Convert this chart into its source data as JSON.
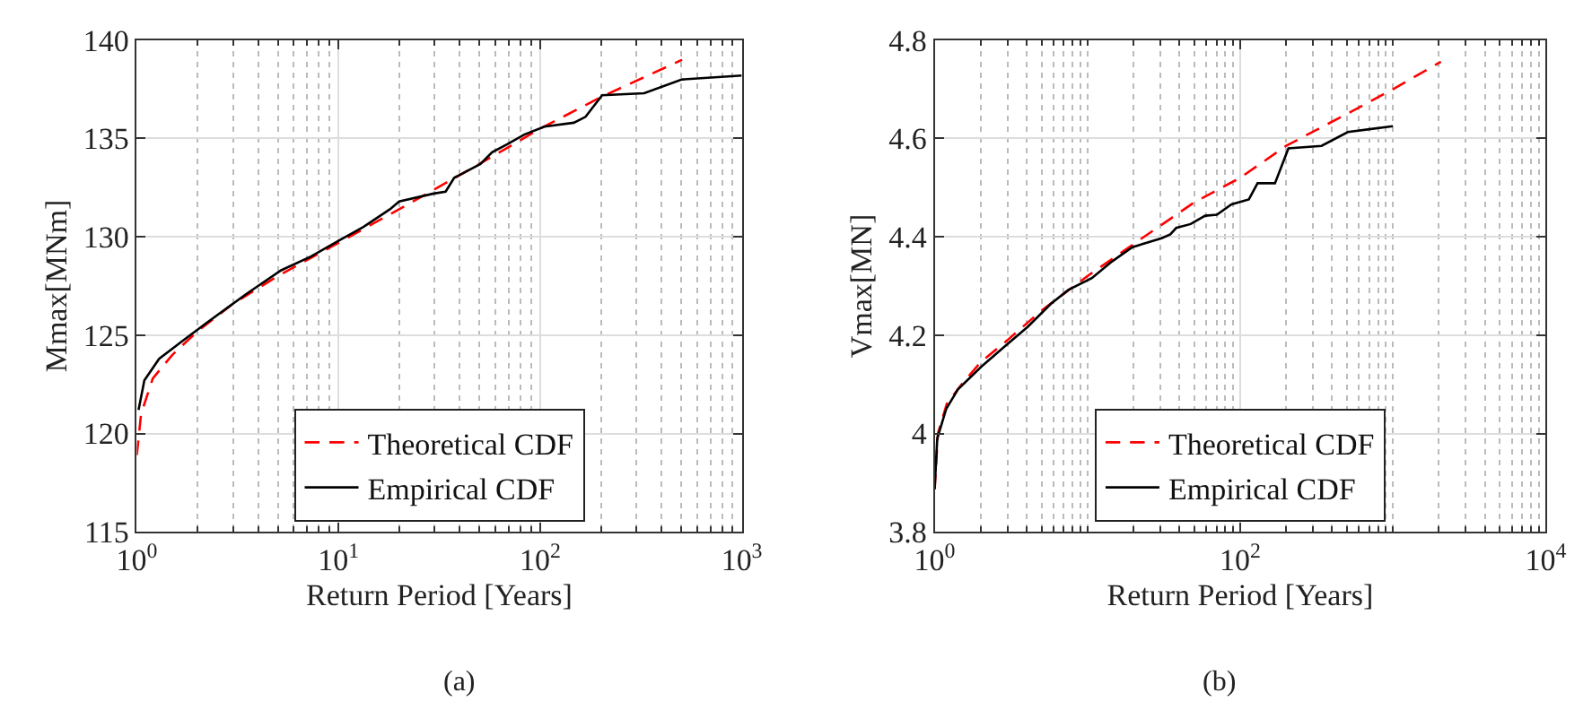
{
  "chart_data": [
    {
      "type": "line",
      "xlabel": "Return Period [Years]",
      "ylabel": "Mmax[MNm]",
      "annotations": [
        "(a)"
      ],
      "log": "x",
      "grid": true,
      "legend": "bottom",
      "xlim": [
        1,
        1000
      ],
      "xticks": [
        {
          "value": 1,
          "label": "10$^{0}$"
        },
        {
          "value": 10,
          "label": "10$^{1}$"
        },
        {
          "value": 100,
          "label": "10$^{2}$"
        },
        {
          "value": 1000,
          "label": "10$^{3}$"
        }
      ],
      "ylim": [
        115,
        140
      ],
      "yticks": [
        115,
        120,
        125,
        130,
        135,
        140
      ],
      "series": [
        {
          "name": "Theoretical CDF",
          "color": "#ff0000",
          "line_style": "dashed",
          "x": [
            1,
            1.05,
            1.2,
            1.5,
            2,
            3,
            5,
            10,
            20,
            50,
            100,
            200,
            506
          ],
          "values": [
            118.9,
            121,
            122.8,
            124,
            125.2,
            126.6,
            128,
            129.7,
            131.4,
            133.7,
            135.5,
            137.1,
            139.0
          ]
        },
        {
          "name": "Empirical CDF",
          "color": "#000000",
          "line_style": "solid",
          "x": [
            1.02,
            1.09,
            1.29,
            1.68,
            2.2,
            3.5,
            5.2,
            7.3,
            10,
            13.3,
            18,
            20,
            29.7,
            34,
            37.5,
            50.6,
            57.8,
            68.4,
            83.5,
            105,
            147,
            168,
            203,
            328,
            506,
            1000
          ],
          "values": [
            121.2,
            122.7,
            123.8,
            124.7,
            125.6,
            127.1,
            128.3,
            129.0,
            129.8,
            130.5,
            131.4,
            131.8,
            132.2,
            132.3,
            133.0,
            133.7,
            134.3,
            134.7,
            135.2,
            135.6,
            135.8,
            136.1,
            137.2,
            137.3,
            138.0,
            138.2
          ]
        }
      ]
    },
    {
      "type": "line",
      "xlabel": "Return Period [Years]",
      "ylabel": "Vmax[MN]",
      "annotations": [
        "(b)"
      ],
      "log": "x",
      "grid": true,
      "legend": "bottom",
      "xlim": [
        1,
        10000
      ],
      "xticks": [
        {
          "value": 1,
          "label": "10$^{0}$"
        },
        {
          "value": 100,
          "label": "10$^{2}$"
        },
        {
          "value": 10000,
          "label": "10$^{4}$"
        }
      ],
      "ylim": [
        3.8,
        4.8
      ],
      "yticks": [
        3.8,
        4,
        4.2,
        4.4,
        4.6,
        4.8
      ],
      "series": [
        {
          "name": "Theoretical CDF",
          "color": "#ff0000",
          "line_style": "dashed",
          "x": [
            1,
            1.05,
            1.2,
            1.5,
            2,
            3,
            5,
            10,
            20,
            50,
            100,
            200,
            500,
            1000,
            2062
          ],
          "values": [
            3.887,
            4.0,
            4.06,
            4.1,
            4.145,
            4.19,
            4.25,
            4.32,
            4.385,
            4.47,
            4.52,
            4.585,
            4.65,
            4.7,
            4.756
          ]
        },
        {
          "name": "Empirical CDF",
          "color": "#000000",
          "line_style": "solid",
          "x": [
            1,
            1.04,
            1.19,
            1.42,
            2.02,
            2.87,
            4.07,
            5.78,
            7.5,
            10.7,
            14.5,
            19.7,
            30.6,
            34.9,
            38.1,
            47.4,
            59,
            70.4,
            87.7,
            114,
            130,
            169,
            207,
            341,
            507,
            1000
          ],
          "values": [
            3.887,
            3.99,
            4.05,
            4.09,
            4.136,
            4.177,
            4.217,
            4.264,
            4.292,
            4.316,
            4.35,
            4.379,
            4.397,
            4.405,
            4.418,
            4.426,
            4.443,
            4.445,
            4.466,
            4.476,
            4.509,
            4.509,
            4.58,
            4.585,
            4.613,
            4.625
          ]
        }
      ]
    }
  ]
}
